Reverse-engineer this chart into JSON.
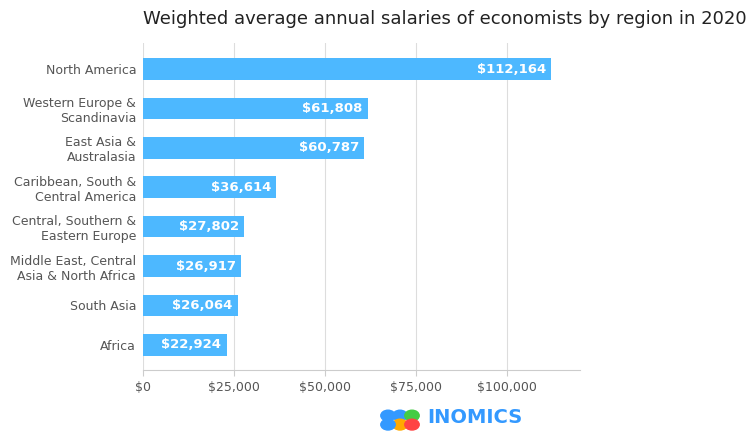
{
  "title": "Weighted average annual salaries of economists by region in 2020",
  "categories": [
    "North America",
    "Western Europe &\nScandinavia",
    "East Asia &\nAustralasia",
    "Caribbean, South &\nCentral America",
    "Central, Southern &\nEastern Europe",
    "Middle East, Central\nAsia & North Africa",
    "South Asia",
    "Africa"
  ],
  "values": [
    112164,
    61808,
    60787,
    36614,
    27802,
    26917,
    26064,
    22924
  ],
  "bar_color": "#4db8ff",
  "label_color": "#ffffff",
  "title_color": "#222222",
  "axis_label_color": "#555555",
  "background_color": "#ffffff",
  "xlim": [
    0,
    120000
  ],
  "xticks": [
    0,
    25000,
    50000,
    75000,
    100000
  ],
  "xtick_labels": [
    "$0",
    "$25,000",
    "$50,000",
    "$75,000",
    "$100,000"
  ],
  "bar_height": 0.55,
  "title_fontsize": 13,
  "label_fontsize": 9.5,
  "tick_fontsize": 9,
  "inomics_text": "INOMICS",
  "inomics_color": "#3399ff",
  "dot_colors": [
    "#3399ff",
    "#ff4444",
    "#ffaa00",
    "#44cc44",
    "#3399ff",
    "#3399ff"
  ]
}
